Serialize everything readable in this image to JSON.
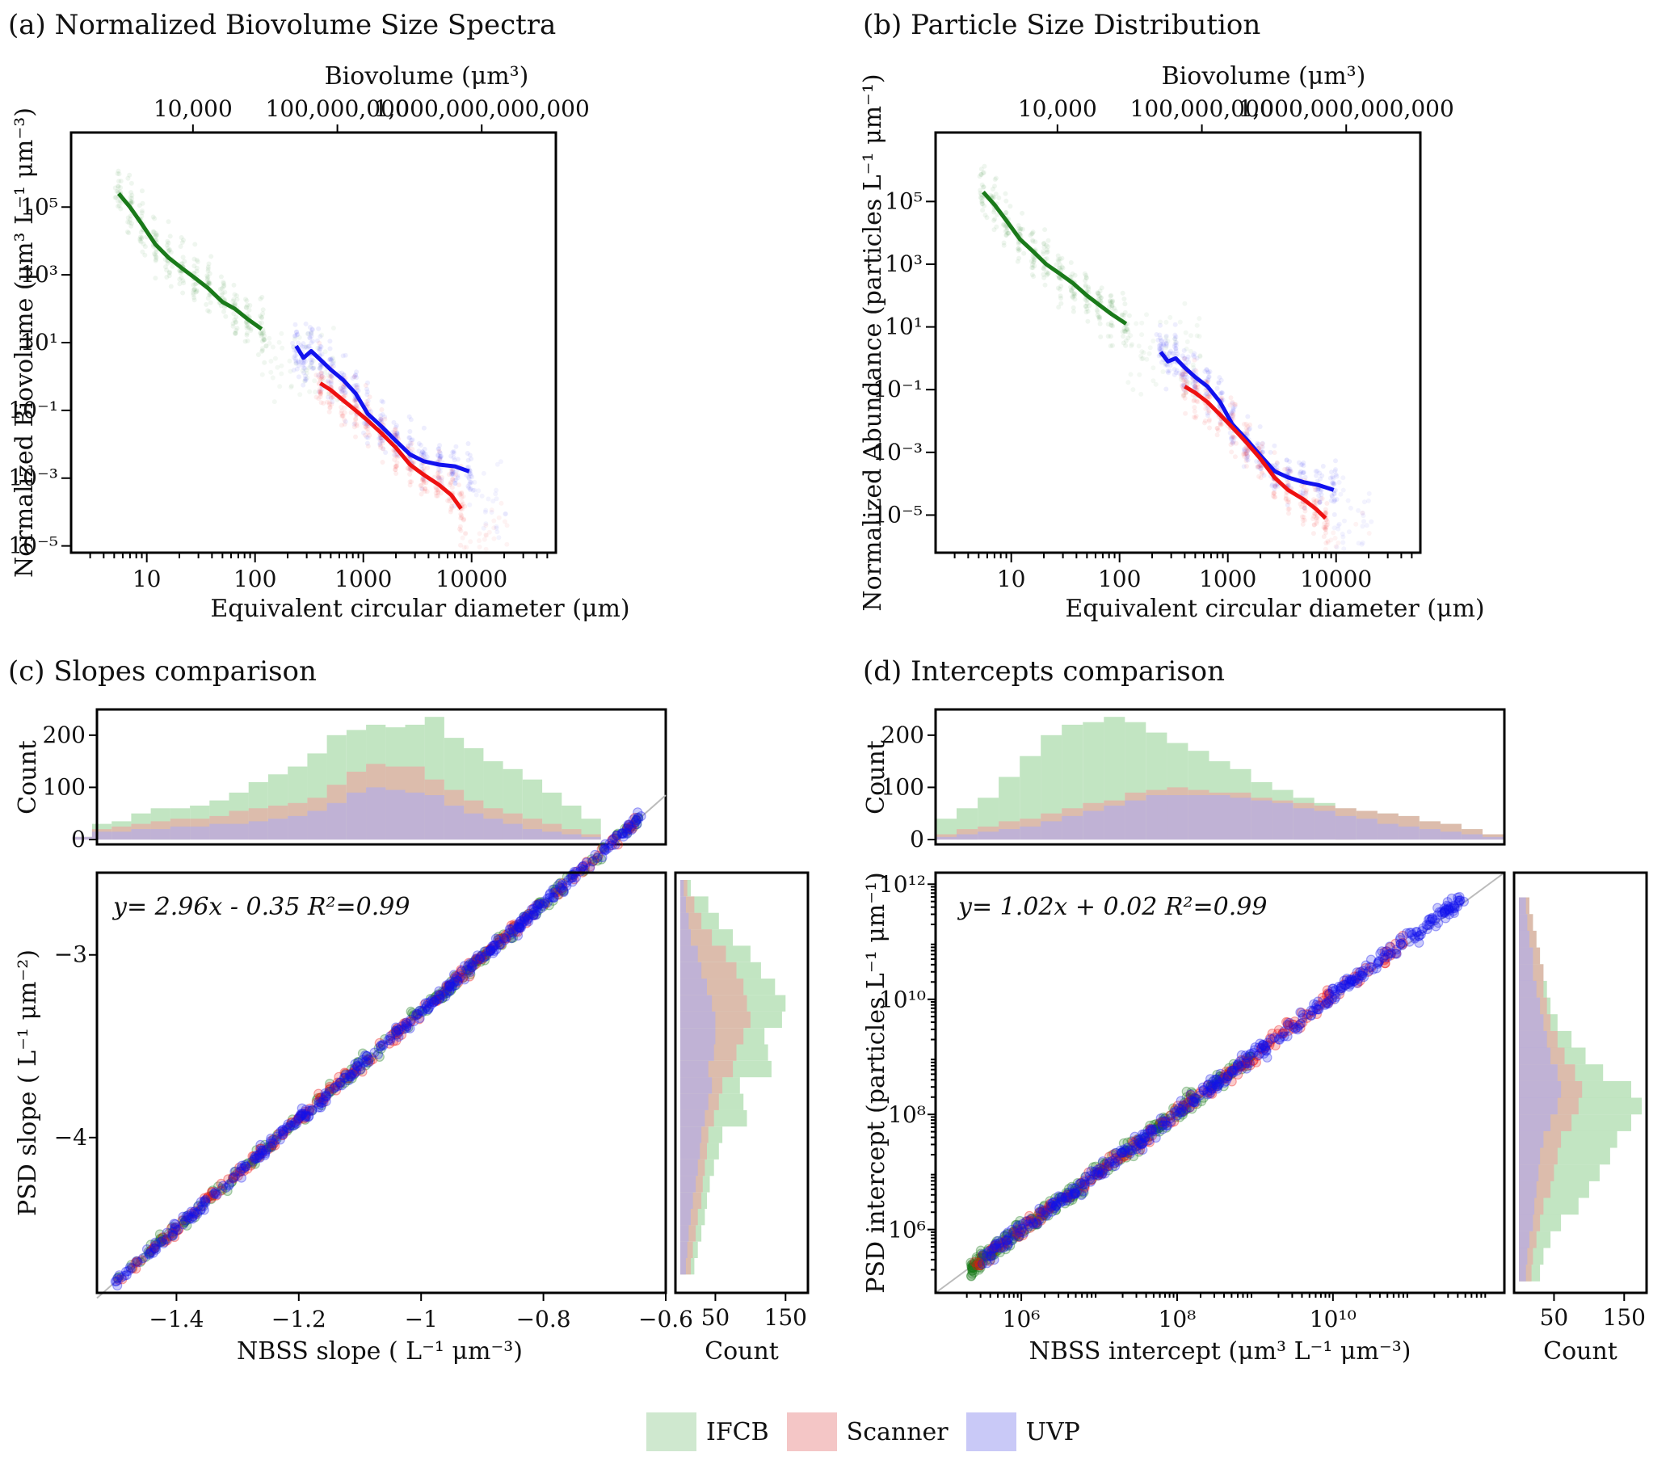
{
  "legend": {
    "items": [
      {
        "label": "IFCB",
        "color": "#cfe8cf"
      },
      {
        "label": "Scanner",
        "color": "#f4c6c6"
      },
      {
        "label": "UVP",
        "color": "#c9c9f7"
      }
    ]
  },
  "colors": {
    "ifcb": "#1a7a1a",
    "scanner": "#ee1111",
    "uvp": "#1111ee",
    "ifcb_fill": "#8fcf8f",
    "scanner_fill": "#f39a9a",
    "uvp_fill": "#a9a9f7"
  },
  "chart_data": [
    {
      "id": "a",
      "type": "line",
      "title": "(a) Normalized Biovolume Size Spectra",
      "xlabel": "Equivalent circular diameter (μm)",
      "ylabel": "Normalized Biovolume (μm³ L⁻¹ μm⁻³)",
      "top_xlabel": "Biovolume (μm³)",
      "xscale": "log",
      "yscale": "log",
      "xlim": [
        2,
        60000
      ],
      "ylim_exp": [
        -5.2,
        7.2
      ],
      "xticks": [
        10,
        100,
        1000,
        10000
      ],
      "xtick_labels": [
        "10",
        "100",
        "1000",
        "10000"
      ],
      "yticks_exp": [
        -5,
        -3,
        -1,
        1,
        3,
        5
      ],
      "ytick_labels": [
        "10⁻⁵",
        "10⁻³",
        "10⁻¹",
        "10¹",
        "10³",
        "10⁵"
      ],
      "top_ticks": [
        26.7,
        576,
        12400
      ],
      "top_tick_labels": [
        "10,000",
        "100,000,000",
        "1,000,000,000,000"
      ],
      "series": [
        {
          "name": "IFCB",
          "x": [
            5.5,
            7,
            9,
            12,
            16,
            21,
            28,
            37,
            50,
            65,
            85,
            115
          ],
          "y_exp": [
            5.4,
            5.0,
            4.5,
            3.9,
            3.5,
            3.2,
            2.9,
            2.6,
            2.2,
            2.0,
            1.7,
            1.4
          ]
        },
        {
          "name": "UVP",
          "x": [
            240,
            280,
            330,
            400,
            500,
            650,
            850,
            1100,
            1500,
            2000,
            2700,
            3600,
            5000,
            7000,
            9500
          ],
          "y_exp": [
            0.9,
            0.55,
            0.75,
            0.5,
            0.2,
            -0.1,
            -0.5,
            -1.1,
            -1.5,
            -1.9,
            -2.3,
            -2.5,
            -2.6,
            -2.65,
            -2.8
          ]
        },
        {
          "name": "Scanner",
          "x": [
            400,
            500,
            650,
            850,
            1100,
            1500,
            2000,
            2700,
            3600,
            5000,
            6500,
            8000
          ],
          "y_exp": [
            -0.2,
            -0.4,
            -0.7,
            -1.0,
            -1.3,
            -1.7,
            -2.1,
            -2.6,
            -2.9,
            -3.2,
            -3.5,
            -3.9
          ]
        }
      ]
    },
    {
      "id": "b",
      "type": "line",
      "title": "(b) Particle Size Distribution",
      "xlabel": "Equivalent circular diameter (μm)",
      "ylabel": "Normalized Abundance (particles L⁻¹ μm⁻¹)",
      "top_xlabel": "Biovolume (μm³)",
      "xscale": "log",
      "yscale": "log",
      "xlim": [
        2,
        60000
      ],
      "ylim_exp": [
        -6.2,
        7.2
      ],
      "xticks": [
        10,
        100,
        1000,
        10000
      ],
      "xtick_labels": [
        "10",
        "100",
        "1000",
        "10000"
      ],
      "yticks_exp": [
        -5,
        -3,
        -1,
        1,
        3,
        5
      ],
      "ytick_labels": [
        "10⁻⁵",
        "10⁻³",
        "10⁻¹",
        "10¹",
        "10³",
        "10⁵"
      ],
      "top_ticks": [
        26.7,
        576,
        12400
      ],
      "top_tick_labels": [
        "10,000",
        "100,000,000",
        "1,000,000,000,000"
      ],
      "series": [
        {
          "name": "IFCB",
          "x": [
            5.5,
            7,
            9,
            12,
            16,
            21,
            28,
            37,
            50,
            65,
            85,
            115
          ],
          "y_exp": [
            5.3,
            4.9,
            4.4,
            3.8,
            3.4,
            3.0,
            2.7,
            2.4,
            2.0,
            1.7,
            1.4,
            1.1
          ]
        },
        {
          "name": "UVP",
          "x": [
            240,
            280,
            330,
            400,
            500,
            650,
            850,
            1100,
            1500,
            2000,
            2700,
            3600,
            5000,
            7000,
            9500
          ],
          "y_exp": [
            0.2,
            -0.1,
            0.0,
            -0.3,
            -0.6,
            -0.9,
            -1.4,
            -2.1,
            -2.6,
            -3.1,
            -3.6,
            -3.8,
            -3.95,
            -4.05,
            -4.2
          ]
        },
        {
          "name": "Scanner",
          "x": [
            400,
            500,
            650,
            850,
            1100,
            1500,
            2000,
            2700,
            3600,
            5000,
            6500,
            8000
          ],
          "y_exp": [
            -0.9,
            -1.1,
            -1.4,
            -1.8,
            -2.2,
            -2.7,
            -3.2,
            -3.8,
            -4.2,
            -4.5,
            -4.8,
            -5.1
          ]
        }
      ]
    },
    {
      "id": "c",
      "type": "scatter",
      "title": "(c) Slopes comparison",
      "xlabel": "NBSS slope ( L⁻¹ μm⁻³)",
      "ylabel": "PSD slope ( L⁻¹ μm⁻²)",
      "equation": "y= 2.96x - 0.35 R²=0.99",
      "fit": {
        "slope": 2.96,
        "intercept": -0.35
      },
      "xlim": [
        -1.53,
        -0.6
      ],
      "ylim": [
        -4.85,
        -2.55
      ],
      "xticks": [
        -1.4,
        -1.2,
        -1.0,
        -0.8,
        -0.6
      ],
      "xtick_labels": [
        "−1.4",
        "−1.2",
        "−1",
        "−0.8",
        "−0.6"
      ],
      "yticks": [
        -4,
        -3
      ],
      "ytick_labels": [
        "−4",
        "−3"
      ],
      "top_hist": {
        "ylabel": "Count",
        "yticks": [
          0,
          100,
          200
        ],
        "ytick_labels": [
          "0",
          "100",
          "200"
        ],
        "bin_start": -1.57,
        "bin_width": 0.032,
        "uvp": [
          5,
          15,
          15,
          20,
          20,
          25,
          25,
          30,
          30,
          35,
          40,
          45,
          55,
          70,
          90,
          100,
          95,
          90,
          85,
          65,
          50,
          40,
          30,
          20,
          15,
          10,
          5
        ],
        "scanner": [
          5,
          20,
          25,
          30,
          35,
          40,
          40,
          45,
          55,
          60,
          65,
          70,
          80,
          105,
          130,
          145,
          140,
          140,
          115,
          95,
          75,
          60,
          50,
          40,
          30,
          20,
          10
        ],
        "ifcb": [
          5,
          30,
          35,
          50,
          60,
          60,
          65,
          75,
          90,
          110,
          125,
          140,
          165,
          200,
          210,
          220,
          215,
          220,
          235,
          195,
          175,
          150,
          135,
          115,
          90,
          65,
          40
        ]
      },
      "right_hist": {
        "xlabel": "Count",
        "xticks": [
          50,
          150
        ],
        "xtick_labels": [
          "50",
          "150"
        ],
        "bin_start": -4.75,
        "bin_width": 0.09,
        "uvp": [
          8,
          10,
          12,
          15,
          18,
          22,
          25,
          28,
          30,
          35,
          40,
          45,
          40,
          48,
          50,
          50,
          45,
          38,
          30,
          25,
          15,
          12,
          8,
          5
        ],
        "scanner": [
          15,
          18,
          22,
          25,
          30,
          32,
          35,
          38,
          40,
          48,
          55,
          60,
          75,
          80,
          90,
          100,
          95,
          90,
          80,
          65,
          45,
          30,
          20,
          10
        ],
        "ifcb": [
          20,
          25,
          30,
          35,
          38,
          42,
          48,
          55,
          60,
          95,
          90,
          85,
          130,
          125,
          120,
          145,
          150,
          135,
          115,
          100,
          75,
          55,
          40,
          15
        ]
      }
    },
    {
      "id": "d",
      "type": "scatter",
      "title": "(d) Intercepts comparison",
      "xlabel": "NBSS intercept (μm³ L⁻¹ μm⁻³)",
      "ylabel": "PSD intercept (particles L⁻¹ μm⁻¹)",
      "equation": "y= 1.02x + 0.02 R²=0.99",
      "fit": {
        "slope": 1.02,
        "intercept": 0.02
      },
      "xscale": "log",
      "yscale": "log",
      "xlim_exp": [
        4.9,
        12.2
      ],
      "ylim_exp": [
        4.9,
        12.2
      ],
      "xticks_exp": [
        6,
        8,
        10
      ],
      "xtick_labels": [
        "10⁶",
        "10⁸",
        "10¹⁰"
      ],
      "yticks_exp": [
        6,
        8,
        10,
        12
      ],
      "ytick_labels": [
        "10⁶",
        "10⁸",
        "10¹⁰",
        "10¹²"
      ],
      "top_hist": {
        "ylabel": "Count",
        "yticks": [
          0,
          100,
          200
        ],
        "ytick_labels": [
          "0",
          "100",
          "200"
        ],
        "bin_start": 4.9,
        "bin_width": 0.27,
        "uvp": [
          5,
          10,
          15,
          20,
          25,
          35,
          45,
          55,
          65,
          75,
          85,
          85,
          85,
          85,
          80,
          75,
          70,
          60,
          55,
          45,
          40,
          30,
          25,
          20,
          15,
          10,
          5
        ],
        "scanner": [
          10,
          20,
          25,
          35,
          40,
          50,
          60,
          70,
          75,
          90,
          95,
          100,
          95,
          90,
          90,
          80,
          75,
          70,
          65,
          60,
          55,
          50,
          45,
          35,
          30,
          20,
          10
        ],
        "ifcb": [
          40,
          60,
          80,
          120,
          160,
          200,
          220,
          225,
          235,
          225,
          205,
          185,
          170,
          150,
          135,
          110,
          95,
          80,
          70,
          60,
          55,
          50,
          45,
          35,
          30,
          20,
          10
        ]
      },
      "right_hist": {
        "xlabel": "Count",
        "xticks": [
          50,
          150
        ],
        "xtick_labels": [
          "50",
          "150"
        ],
        "bin_start": 5.1,
        "bin_width": 0.29,
        "uvp": [
          10,
          12,
          15,
          20,
          22,
          25,
          28,
          30,
          35,
          45,
          55,
          60,
          55,
          45,
          40,
          35,
          30,
          25,
          20,
          20,
          15,
          12,
          10
        ],
        "scanner": [
          18,
          20,
          25,
          30,
          35,
          45,
          50,
          55,
          60,
          75,
          85,
          90,
          80,
          65,
          55,
          45,
          40,
          35,
          35,
          30,
          25,
          20,
          15
        ],
        "ifcb": [
          30,
          35,
          45,
          60,
          85,
          100,
          115,
          130,
          140,
          160,
          175,
          160,
          120,
          95,
          75,
          55,
          45,
          40,
          35,
          30,
          25,
          20,
          15
        ]
      }
    }
  ]
}
